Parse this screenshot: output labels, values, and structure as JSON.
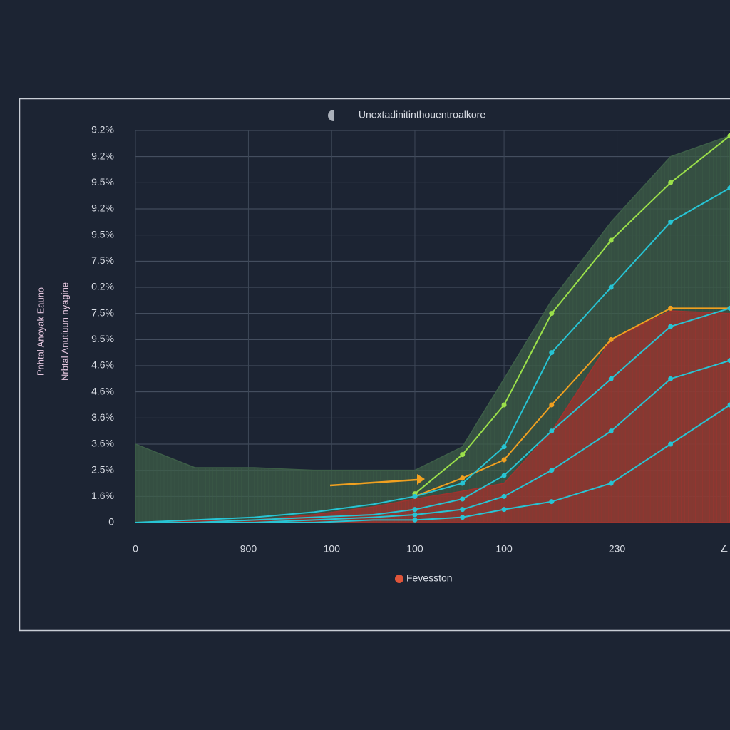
{
  "chart_data": {
    "type": "line",
    "title": "Unextadinitinthouentroalkore",
    "ylabel": [
      "Pnhtal Anoyak Eauno",
      "Nrbtal Anutiuun nyagine"
    ],
    "x": [
      0,
      10,
      20,
      30,
      40,
      47,
      55,
      62,
      70,
      80,
      90,
      100
    ],
    "xlim": [
      0,
      100
    ],
    "xticks": [
      {
        "value": 0,
        "label": "0"
      },
      {
        "value": 19,
        "label": "900"
      },
      {
        "value": 33,
        "label": "100"
      },
      {
        "value": 47,
        "label": "100"
      },
      {
        "value": 62,
        "label": "100"
      },
      {
        "value": 81,
        "label": "230"
      },
      {
        "value": 99,
        "label": "∠"
      }
    ],
    "ylim": [
      0,
      15
    ],
    "yticks": [
      {
        "value": 0,
        "label": "0"
      },
      {
        "value": 1,
        "label": "1.6%"
      },
      {
        "value": 2,
        "label": "2.5%"
      },
      {
        "value": 3,
        "label": "3.6%"
      },
      {
        "value": 4,
        "label": "3.6%"
      },
      {
        "value": 5,
        "label": "4.6%"
      },
      {
        "value": 6,
        "label": "4.6%"
      },
      {
        "value": 7,
        "label": "9.5%"
      },
      {
        "value": 8,
        "label": "7.5%"
      },
      {
        "value": 9,
        "label": "0.2%"
      },
      {
        "value": 10,
        "label": "7.5%"
      },
      {
        "value": 11,
        "label": "9.5%"
      },
      {
        "value": 12,
        "label": "9.2%"
      },
      {
        "value": 13,
        "label": "9.5%"
      },
      {
        "value": 14,
        "label": "9.2%"
      },
      {
        "value": 15,
        "label": "9.2%"
      }
    ],
    "grid": true,
    "series": [
      {
        "style": "area",
        "color": "#3d5e48",
        "values": [
          3.0,
          2.1,
          2.1,
          2.0,
          2.0,
          2.0,
          2.9,
          5.5,
          8.5,
          11.5,
          14,
          14.8
        ]
      },
      {
        "style": "area",
        "name": "Fevesston",
        "color": "#a0322e",
        "values": [
          0,
          0.05,
          0.1,
          0.3,
          0.6,
          0.9,
          1.2,
          1.5,
          3.5,
          7,
          8.1,
          8.0
        ]
      },
      {
        "style": "line",
        "color": "#9be04a",
        "values": [
          null,
          null,
          null,
          null,
          null,
          1.1,
          2.6,
          4.5,
          8,
          10.8,
          13,
          14.8
        ]
      },
      {
        "style": "line",
        "color": "#f0a020",
        "values": [
          null,
          null,
          null,
          null,
          null,
          1.0,
          1.7,
          2.4,
          4.5,
          7,
          8.2,
          8.2
        ]
      },
      {
        "style": "line",
        "color": "#27c4d4",
        "values": [
          0,
          0.1,
          0.2,
          0.4,
          0.7,
          1.0,
          1.5,
          2.9,
          6.5,
          9,
          11.5,
          12.8
        ]
      },
      {
        "style": "line",
        "color": "#27c4d4",
        "values": [
          0,
          0,
          0.1,
          0.2,
          0.3,
          0.5,
          0.9,
          1.8,
          3.5,
          5.5,
          7.5,
          8.2
        ]
      },
      {
        "style": "line",
        "color": "#27c4d4",
        "values": [
          0,
          0,
          0,
          0.1,
          0.2,
          0.3,
          0.5,
          1.0,
          2.0,
          3.5,
          5.5,
          6.2
        ]
      },
      {
        "style": "line",
        "color": "#27c4d4",
        "values": [
          0,
          0,
          0,
          0,
          0.1,
          0.1,
          0.2,
          0.5,
          0.8,
          1.5,
          3,
          4.5
        ]
      }
    ]
  }
}
